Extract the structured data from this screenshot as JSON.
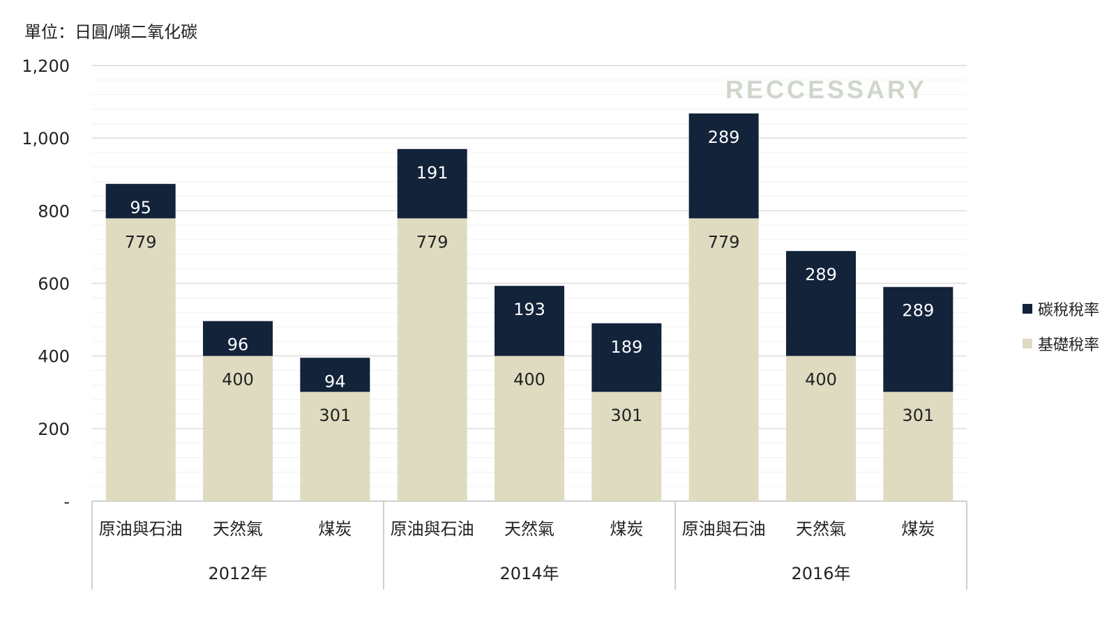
{
  "unit_label": "單位：日圓/噸二氧化碳",
  "watermark": "RECCESSARY",
  "colors": {
    "base": "#dedbc0",
    "carbon": "#12233a",
    "grid": "#e6e6e6",
    "axis": "#cfcfcf"
  },
  "chart_data": {
    "type": "bar",
    "stacked": true,
    "ylim": [
      0,
      1200
    ],
    "yticks": [
      0,
      200,
      400,
      600,
      800,
      1000,
      1200
    ],
    "ytick_labels": [
      "-",
      "200",
      "400",
      "600",
      "800",
      "1,000",
      "1,200"
    ],
    "groups": [
      {
        "label": "2012年",
        "categories": [
          "原油與石油",
          "天然氣",
          "煤炭"
        ]
      },
      {
        "label": "2014年",
        "categories": [
          "原油與石油",
          "天然氣",
          "煤炭"
        ]
      },
      {
        "label": "2016年",
        "categories": [
          "原油與石油",
          "天然氣",
          "煤炭"
        ]
      }
    ],
    "series": [
      {
        "name": "基礎稅率",
        "color": "#dedbc0",
        "label_color": "#222222",
        "values": [
          779,
          400,
          301,
          779,
          400,
          301,
          779,
          400,
          301
        ]
      },
      {
        "name": "碳稅稅率",
        "color": "#12233a",
        "label_color": "#ffffff",
        "values": [
          95,
          96,
          94,
          191,
          193,
          189,
          289,
          289,
          289
        ]
      }
    ],
    "legend_position": "right",
    "grid": true
  }
}
